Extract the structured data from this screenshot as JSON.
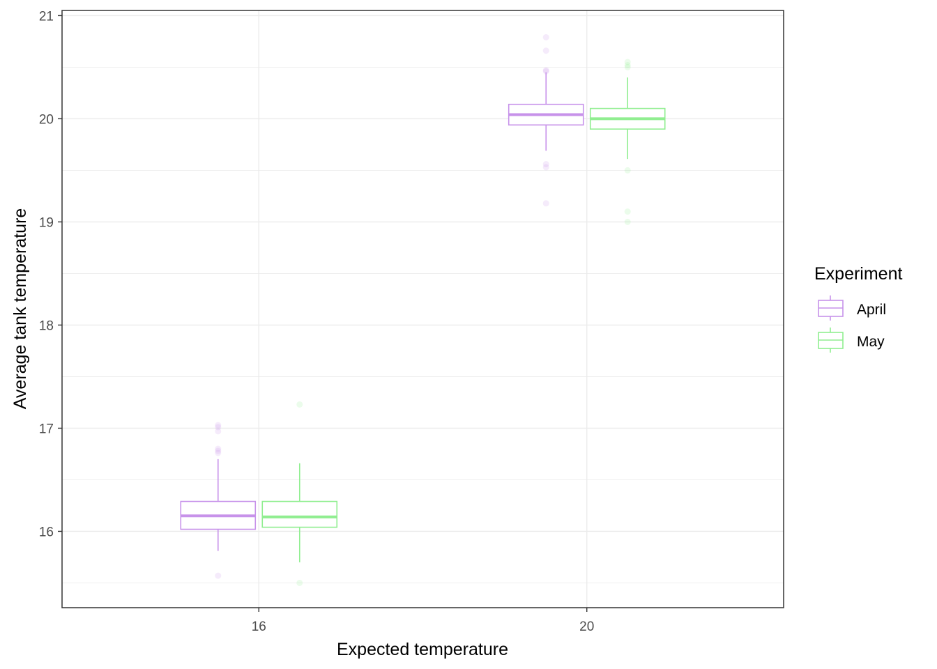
{
  "chart_data": {
    "type": "boxplot",
    "xlabel": "Expected temperature",
    "ylabel": "Average tank temperature",
    "categories": [
      "16",
      "20"
    ],
    "ylim": [
      15.26,
      21.05
    ],
    "y_ticks": [
      16,
      17,
      18,
      19,
      20,
      21
    ],
    "y_tick_labels": [
      "16",
      "17",
      "18",
      "19",
      "20",
      "21"
    ],
    "grid": true,
    "legend": {
      "title": "Experiment",
      "position": "right"
    },
    "series": [
      {
        "name": "April",
        "color": "#c792ea",
        "boxes": [
          {
            "category": "16",
            "q1": 16.02,
            "median": 16.15,
            "q3": 16.29,
            "whisker_low": 15.81,
            "whisker_high": 16.7,
            "outliers": [
              15.57,
              16.76,
              16.78,
              16.8,
              16.97,
              17.01,
              17.03
            ]
          },
          {
            "category": "20",
            "q1": 19.94,
            "median": 20.04,
            "q3": 20.14,
            "whisker_low": 19.69,
            "whisker_high": 20.45,
            "outliers": [
              19.18,
              19.53,
              19.56,
              20.46,
              20.47,
              20.66,
              20.79
            ]
          }
        ]
      },
      {
        "name": "May",
        "color": "#90ee90",
        "boxes": [
          {
            "category": "16",
            "q1": 16.04,
            "median": 16.14,
            "q3": 16.29,
            "whisker_low": 15.7,
            "whisker_high": 16.66,
            "outliers": [
              15.5,
              17.23
            ]
          },
          {
            "category": "20",
            "q1": 19.9,
            "median": 20.0,
            "q3": 20.1,
            "whisker_low": 19.61,
            "whisker_high": 20.4,
            "outliers": [
              19.0,
              19.1,
              19.5,
              20.5,
              20.52,
              20.55
            ]
          }
        ]
      }
    ]
  }
}
